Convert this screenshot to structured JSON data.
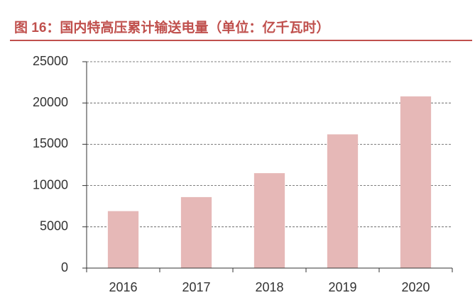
{
  "chart_data": {
    "type": "bar",
    "title": "图 16：国内特高压累计输送电量（单位：亿千瓦时）",
    "categories": [
      "2016",
      "2017",
      "2018",
      "2019",
      "2020"
    ],
    "values": [
      6900,
      8600,
      11500,
      16200,
      20800
    ],
    "color": "#e6b8b7",
    "ylim": [
      0,
      25000
    ],
    "yticks": [
      0,
      5000,
      10000,
      15000,
      20000,
      25000
    ],
    "grid": true
  }
}
